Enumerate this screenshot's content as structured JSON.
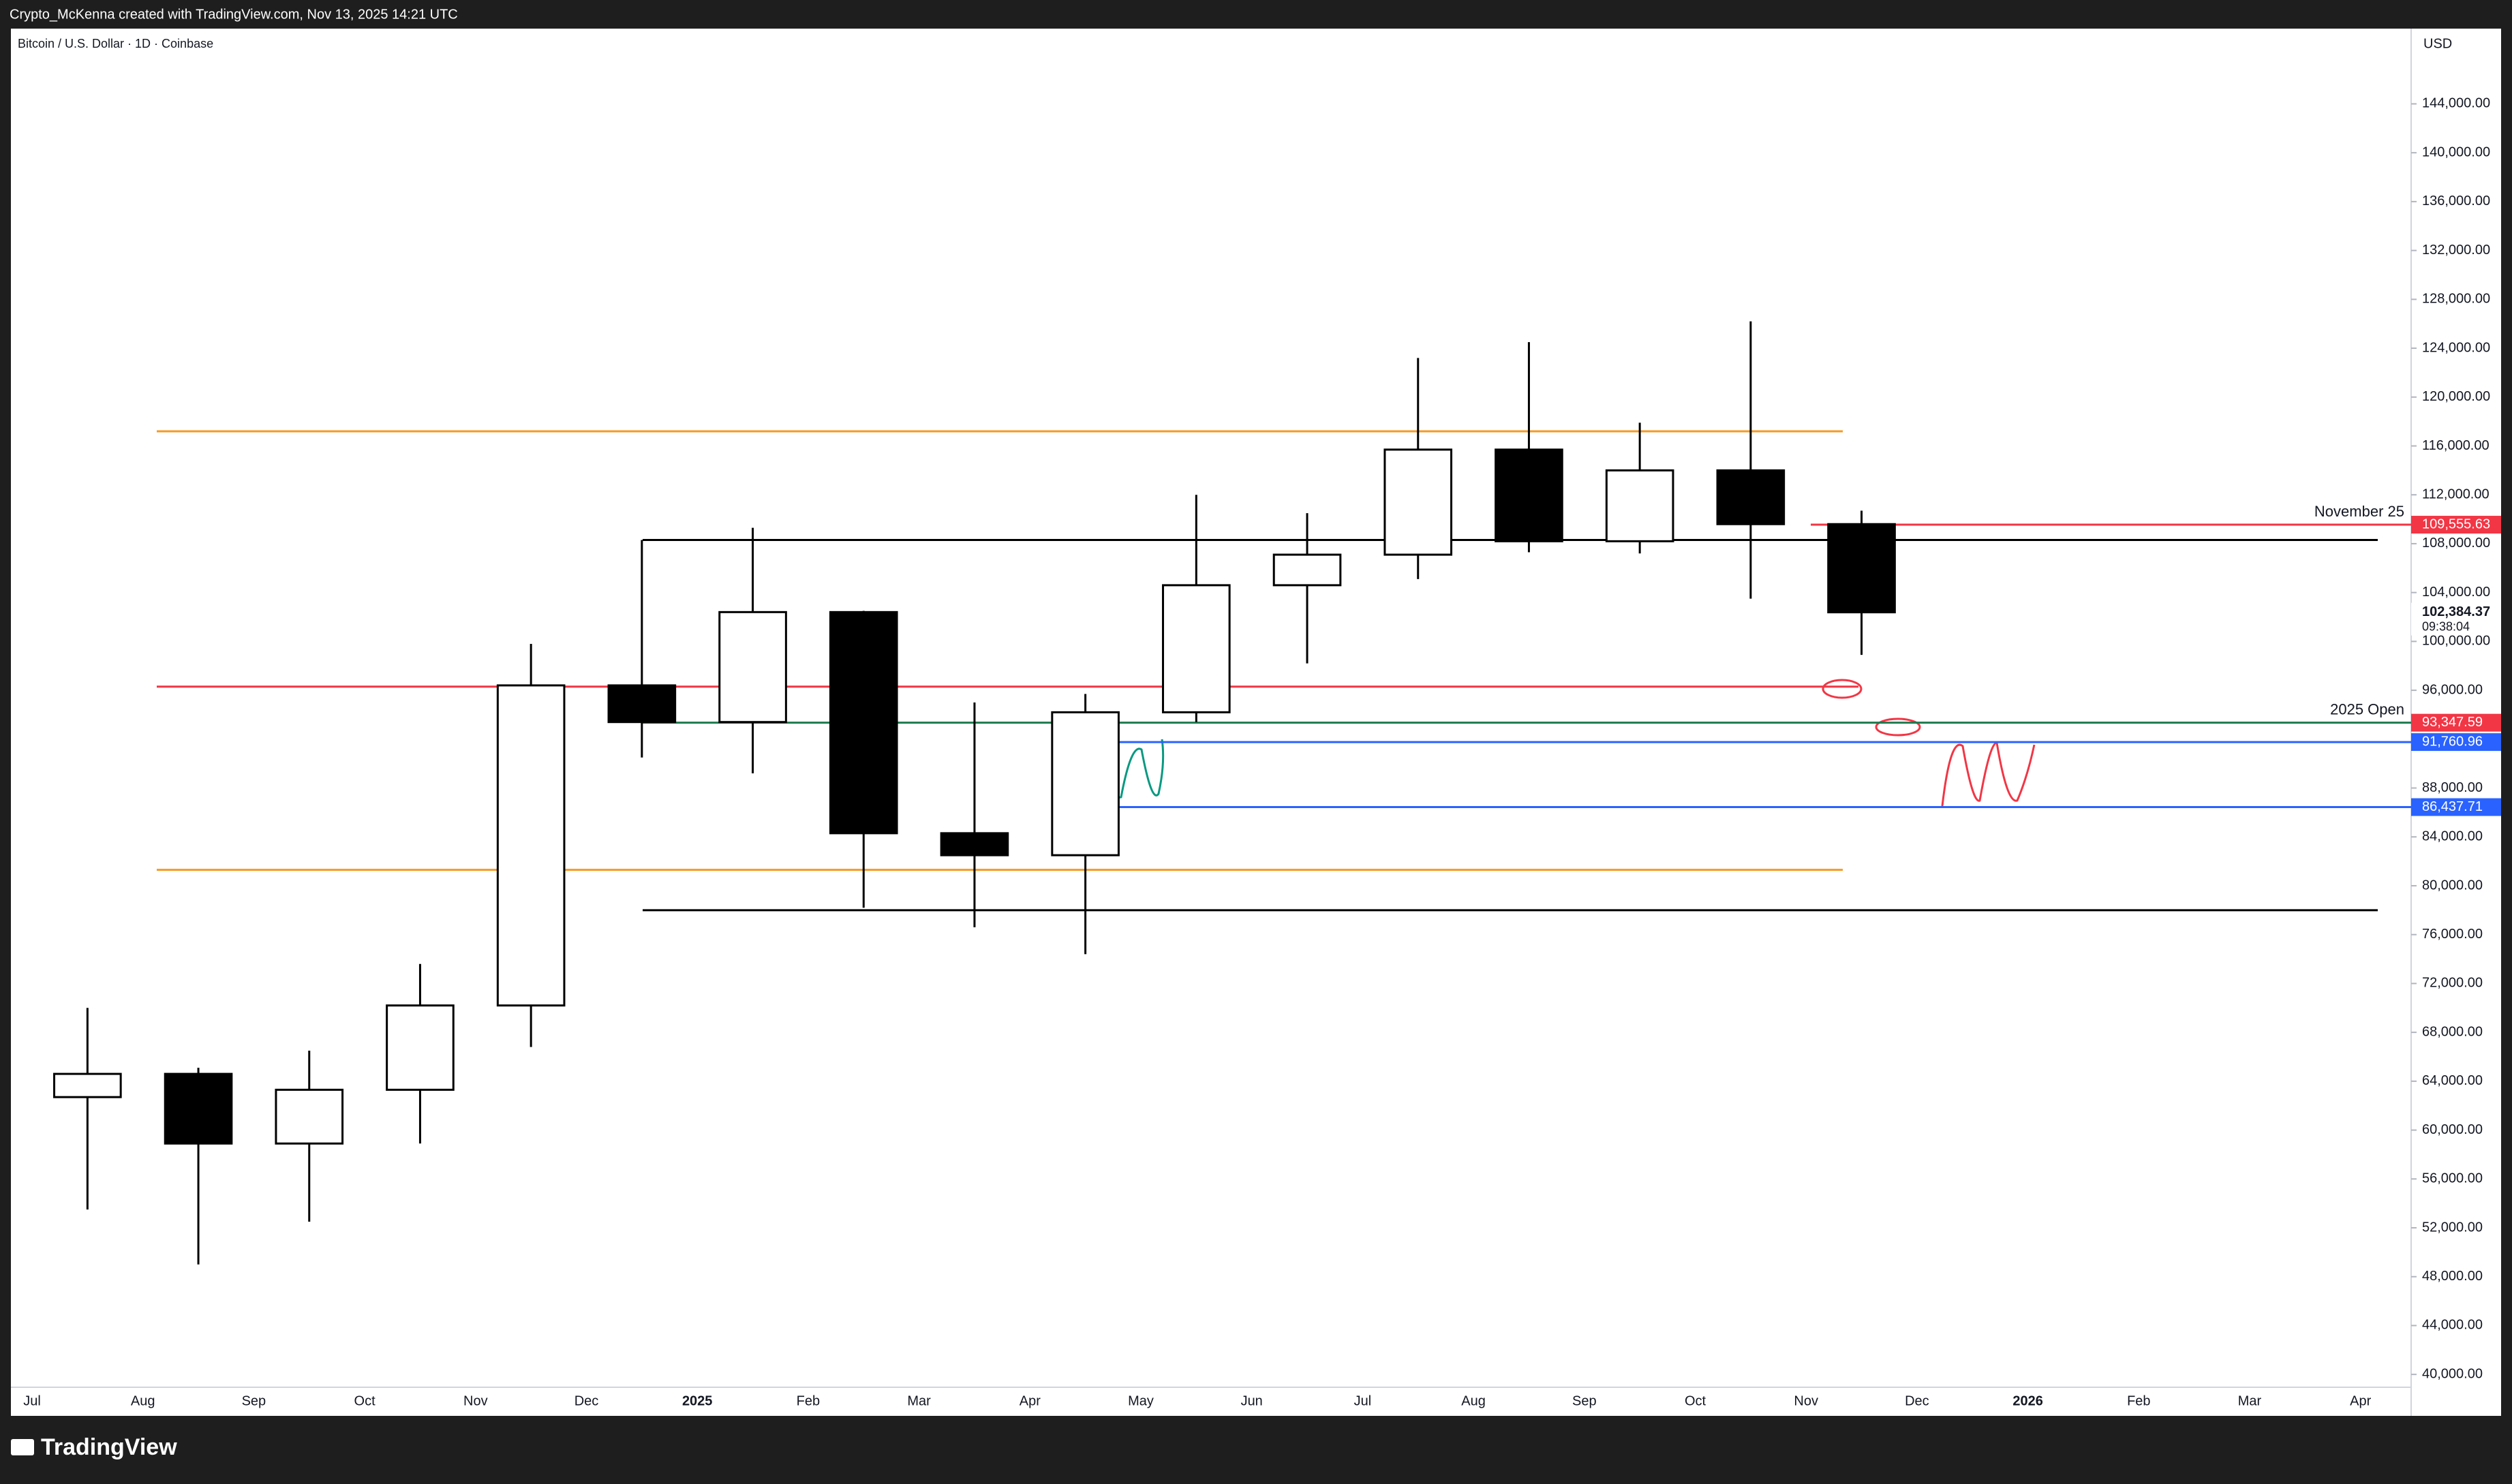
{
  "header": {
    "credit": "Crypto_McKenna created with TradingView.com, Nov 13, 2025 14:21 UTC",
    "brand": "TradingView"
  },
  "chart_data": {
    "type": "candlestick",
    "title": "Bitcoin / U.S. Dollar · 1D · Coinbase",
    "y_axis_label": "USD",
    "categories": [
      "Jul",
      "Aug",
      "Sep",
      "Oct",
      "Nov",
      "Dec",
      "2025",
      "Feb",
      "Mar",
      "Apr",
      "May",
      "Jun",
      "Jul",
      "Aug",
      "Sep",
      "Oct",
      "Nov",
      "Dec",
      "2026",
      "Feb",
      "Mar",
      "Apr"
    ],
    "open": [
      62700,
      64600,
      58900,
      63300,
      70200,
      96400,
      93400,
      102400,
      84300,
      82500,
      94200,
      104600,
      107100,
      115700,
      108200,
      114000,
      109600,
      null,
      null,
      null,
      null,
      null
    ],
    "high": [
      70000,
      65100,
      66500,
      73600,
      99800,
      108300,
      109300,
      102500,
      95000,
      95700,
      112000,
      110500,
      123200,
      124500,
      117900,
      126200,
      110700,
      null,
      null,
      null,
      null,
      null
    ],
    "low": [
      53500,
      49000,
      52500,
      58900,
      66800,
      90500,
      89200,
      78200,
      76600,
      74400,
      93400,
      98200,
      105100,
      107300,
      107200,
      103500,
      98900,
      null,
      null,
      null,
      null,
      null
    ],
    "close": [
      64600,
      58900,
      63300,
      70200,
      96400,
      93400,
      102400,
      84300,
      82500,
      94200,
      104600,
      107100,
      115700,
      108200,
      114000,
      109600,
      102384.37,
      null,
      null,
      null,
      null,
      null
    ],
    "up_color": "#ffffff",
    "down_color": "#000000",
    "outline_color": "#000000",
    "ylim": [
      38950,
      150160
    ],
    "yticks": [
      {
        "value": 40000,
        "label": "40,000.00"
      },
      {
        "value": 44000,
        "label": "44,000.00"
      },
      {
        "value": 48000,
        "label": "48,000.00"
      },
      {
        "value": 52000,
        "label": "52,000.00"
      },
      {
        "value": 56000,
        "label": "56,000.00"
      },
      {
        "value": 60000,
        "label": "60,000.00"
      },
      {
        "value": 64000,
        "label": "64,000.00"
      },
      {
        "value": 68000,
        "label": "68,000.00"
      },
      {
        "value": 72000,
        "label": "72,000.00"
      },
      {
        "value": 76000,
        "label": "76,000.00"
      },
      {
        "value": 80000,
        "label": "80,000.00"
      },
      {
        "value": 84000,
        "label": "84,000.00"
      },
      {
        "value": 88000,
        "label": "88,000.00"
      },
      {
        "value": 96000,
        "label": "96,000.00"
      },
      {
        "value": 100000,
        "label": "100,000.00"
      },
      {
        "value": 104000,
        "label": "104,000.00"
      },
      {
        "value": 108000,
        "label": "108,000.00"
      },
      {
        "value": 112000,
        "label": "112,000.00"
      },
      {
        "value": 116000,
        "label": "116,000.00"
      },
      {
        "value": 120000,
        "label": "120,000.00"
      },
      {
        "value": 124000,
        "label": "124,000.00"
      },
      {
        "value": 128000,
        "label": "128,000.00"
      },
      {
        "value": 132000,
        "label": "132,000.00"
      },
      {
        "value": 136000,
        "label": "136,000.00"
      },
      {
        "value": 140000,
        "label": "140,000.00"
      },
      {
        "value": 144000,
        "label": "144,000.00"
      }
    ],
    "levels": [
      {
        "value": 117200,
        "color": "#f59a23"
      },
      {
        "value": 109555.63,
        "label": "109,555.63",
        "color": "#f23645",
        "annotation": "November 25"
      },
      {
        "value": 108300,
        "color": "#000000"
      },
      {
        "value": 96300,
        "color": "#f23645"
      },
      {
        "value": 93347.59,
        "label": "93,347.59",
        "color": "#1e7a4f",
        "label_color": "#f23645",
        "annotation": "2025 Open"
      },
      {
        "value": 91760.96,
        "label": "91,760.96",
        "color": "#2962ff"
      },
      {
        "value": 86437.71,
        "label": "86,437.71",
        "color": "#2962ff"
      },
      {
        "value": 81300,
        "color": "#f59a23"
      },
      {
        "value": 78000,
        "color": "#000000"
      }
    ],
    "last_price": {
      "value": 102384.37,
      "label": "102,384.37",
      "countdown": "09:38:04"
    }
  }
}
